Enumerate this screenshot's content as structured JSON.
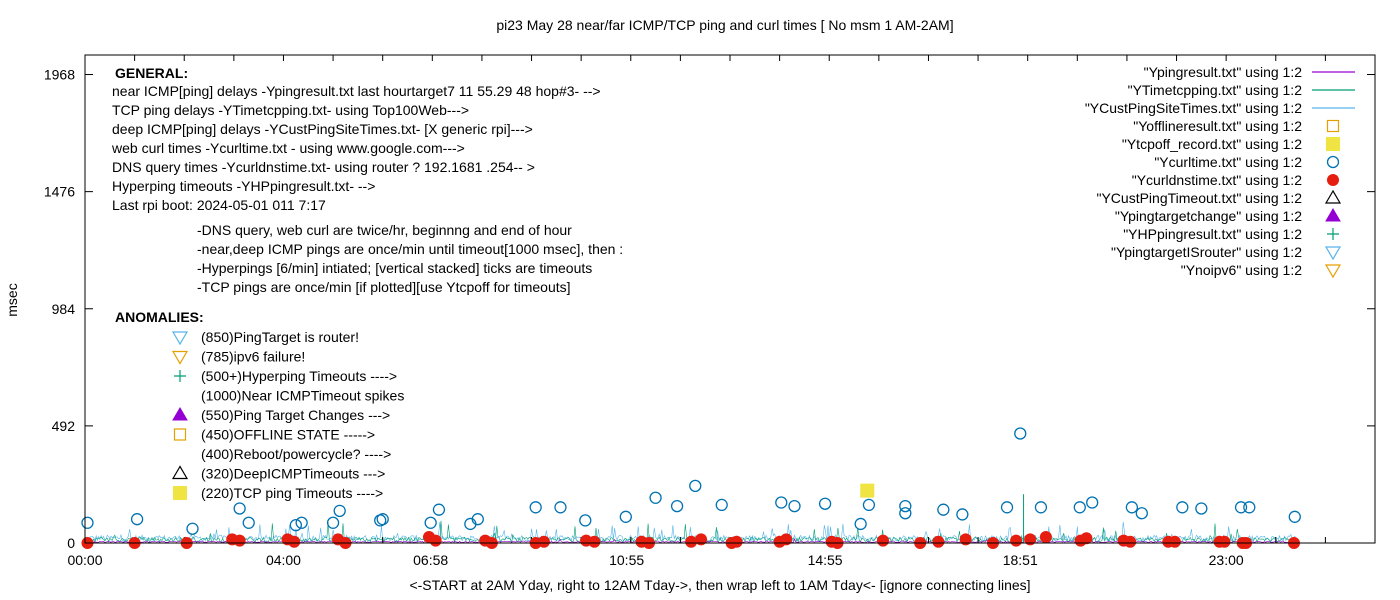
{
  "chart_data": {
    "type": "scatter",
    "title": "pi23 May 28  near/far ICMP/TCP ping and curl times [ No msm 1 AM-2AM]",
    "xlabel": "<-START at 2AM Yday, right to 12AM Tday->, then wrap left to 1AM Tday<- [ignore connecting lines]",
    "ylabel": "msec",
    "xlim": [
      0,
      1560
    ],
    "ylim": [
      0,
      2050
    ],
    "x_ticks": [
      {
        "v": 0,
        "label": "00:00"
      },
      {
        "v": 240,
        "label": "04:00"
      },
      {
        "v": 418,
        "label": "06:58"
      },
      {
        "v": 655,
        "label": "10:55"
      },
      {
        "v": 895,
        "label": "14:55"
      },
      {
        "v": 1131,
        "label": "18:51"
      },
      {
        "v": 1380,
        "label": "23:00"
      }
    ],
    "y_ticks": [
      0,
      492,
      984,
      1476,
      1968
    ],
    "legend_position": "top-right",
    "legend": [
      {
        "label": "\"Ypingresult.txt\" using 1:2",
        "symbol": "line",
        "color": "#9400d3"
      },
      {
        "label": "\"YTimetcpping.txt\" using 1:2",
        "symbol": "line",
        "color": "#009e73"
      },
      {
        "label": "\"YCustPingSiteTimes.txt\" using 1:2",
        "symbol": "line",
        "color": "#56b4e9"
      },
      {
        "label": "\"Yofflineresult.txt\" using 1:2",
        "symbol": "square-open",
        "color": "#e69f00"
      },
      {
        "label": "\"Ytcpoff_record.txt\" using 1:2",
        "symbol": "square-filled",
        "color": "#f0e442"
      },
      {
        "label": "\"Ycurltime.txt\" using 1:2",
        "symbol": "circle-open",
        "color": "#0072b2"
      },
      {
        "label": "\"Ycurldnstime.txt\" using 1:2",
        "symbol": "circle-filled",
        "color": "#e51e10"
      },
      {
        "label": "\"YCustPingTimeout.txt\" using 1:2",
        "symbol": "triangle-open",
        "color": "#000000"
      },
      {
        "label": "\"Ypingtargetchange\" using 1:2",
        "symbol": "triangle-filled",
        "color": "#9400d3"
      },
      {
        "label": "\"YHPpingresult.txt\" using 1:2",
        "symbol": "plus",
        "color": "#009e73"
      },
      {
        "label": "\"YpingtargetISrouter\" using 1:2",
        "symbol": "triangle-down-open",
        "color": "#56b4e9"
      },
      {
        "label": "\"Ynoipv6\" using 1:2",
        "symbol": "triangle-down-open",
        "color": "#e69f00"
      }
    ],
    "general_heading": "GENERAL:",
    "general_lines": [
      "near ICMP[ping] delays -Ypingresult.txt last hourtarget7 11 55.29 48 hop#3- -->",
      "TCP ping delays -YTimetcpping.txt- using Top100Web--->",
      "deep ICMP[ping] delays -YCustPingSiteTimes.txt- [X generic rpi]--->",
      "web curl times -Ycurltime.txt - using www.google.com--->",
      "DNS query times -Ycurldnstime.txt- using router ? 192.1681 .254-- >",
      "Hyperping timeouts -YHPpingresult.txt- -->",
      "Last rpi boot: 2024-05-01 011 7:17"
    ],
    "notes_lines": [
      "-DNS query, web curl are twice/hr, beginnng and end of hour",
      "-near,deep ICMP pings are once/min  until timeout[1000 msec], then :",
      " -Hyperpings [6/min] intiated; [vertical stacked] ticks are timeouts",
      "-TCP pings are once/min [if plotted][use Ytcpoff for  timeouts]"
    ],
    "anomalies_heading": "ANOMALIES:",
    "anomalies": [
      {
        "text": "(850)PingTarget is router!",
        "symbol": "triangle-down-open",
        "color": "#56b4e9"
      },
      {
        "text": "(785)ipv6 failure!",
        "symbol": "triangle-down-open",
        "color": "#e69f00"
      },
      {
        "text": "(500+)Hyperping Timeouts ---->",
        "symbol": "plus",
        "color": "#009e73"
      },
      {
        "text": "(1000)Near ICMPTimeout spikes",
        "symbol": "none",
        "color": "#000000"
      },
      {
        "text": "(550)Ping Target Changes --->",
        "symbol": "triangle-filled",
        "color": "#9400d3"
      },
      {
        "text": "(450)OFFLINE STATE ----->",
        "symbol": "square-open",
        "color": "#e69f00"
      },
      {
        "text": "(400)Reboot/powercycle? ---->",
        "symbol": "none",
        "color": "#000000"
      },
      {
        "text": "(320)DeepICMPTimeouts --->",
        "symbol": "triangle-open",
        "color": "#000000"
      },
      {
        "text": "(220)TCP ping Timeouts ---->",
        "symbol": "square-filled",
        "color": "#f0e442"
      }
    ],
    "series": [
      {
        "name": "\"Ycurltime.txt\" using 1:2",
        "marker": "circle-open",
        "color": "#0072b2",
        "x": [
          3,
          63,
          130,
          187,
          198,
          255,
          262,
          300,
          308,
          357,
          360,
          418,
          428,
          466,
          475,
          545,
          575,
          605,
          654,
          690,
          716,
          738,
          770,
          842,
          858,
          895,
          938,
          948,
          992,
          992,
          1038,
          1061,
          1115,
          1131,
          1156,
          1203,
          1218,
          1266,
          1278,
          1327,
          1350,
          1398,
          1408,
          1463
        ],
        "y": [
          85,
          100,
          60,
          145,
          85,
          75,
          85,
          85,
          135,
          95,
          100,
          85,
          140,
          80,
          100,
          150,
          150,
          95,
          110,
          190,
          155,
          240,
          160,
          170,
          155,
          165,
          80,
          160,
          125,
          155,
          140,
          120,
          150,
          460,
          150,
          150,
          170,
          150,
          125,
          150,
          145,
          150,
          150,
          110
        ]
      },
      {
        "name": "\"Ycurldnstime.txt\" using 1:2",
        "marker": "circle-filled",
        "color": "#e51e10",
        "x": [
          3,
          60,
          123,
          178,
          187,
          245,
          253,
          306,
          315,
          416,
          424,
          484,
          492,
          545,
          555,
          606,
          616,
          673,
          682,
          733,
          745,
          782,
          788,
          840,
          848,
          903,
          910,
          965,
          1010,
          1032,
          1065,
          1098,
          1126,
          1143,
          1162,
          1204,
          1211,
          1256,
          1264,
          1310,
          1318,
          1372,
          1378,
          1400,
          1404,
          1462
        ],
        "y": [
          0,
          0,
          0,
          15,
          10,
          15,
          5,
          15,
          0,
          25,
          10,
          10,
          0,
          0,
          5,
          10,
          5,
          5,
          0,
          5,
          15,
          0,
          5,
          5,
          15,
          5,
          0,
          10,
          0,
          5,
          15,
          0,
          10,
          15,
          25,
          10,
          20,
          10,
          5,
          5,
          5,
          5,
          5,
          0,
          0,
          0
        ]
      },
      {
        "name": "\"Ytcpoff_record.txt\" using 1:2",
        "marker": "square-filled",
        "color": "#f0e442",
        "x": [
          946
        ],
        "y": [
          220
        ]
      }
    ]
  }
}
